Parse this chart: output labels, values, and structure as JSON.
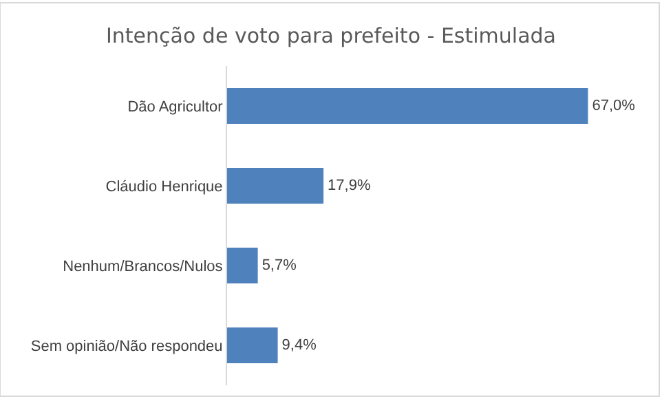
{
  "chart_data": {
    "type": "bar",
    "orientation": "horizontal",
    "title": "Intenção de voto para prefeito - Estimulada",
    "categories": [
      "Dão Agricultor",
      "Cláudio Henrique",
      "Nenhum/Brancos/Nulos",
      "Sem opinião/Não respondeu"
    ],
    "values": [
      67.0,
      17.9,
      5.7,
      9.4
    ],
    "value_labels": [
      "67,0%",
      "17,9%",
      "5,7%",
      "9,4%"
    ],
    "color": "#4f81bd",
    "tick_labels": "y"
  }
}
